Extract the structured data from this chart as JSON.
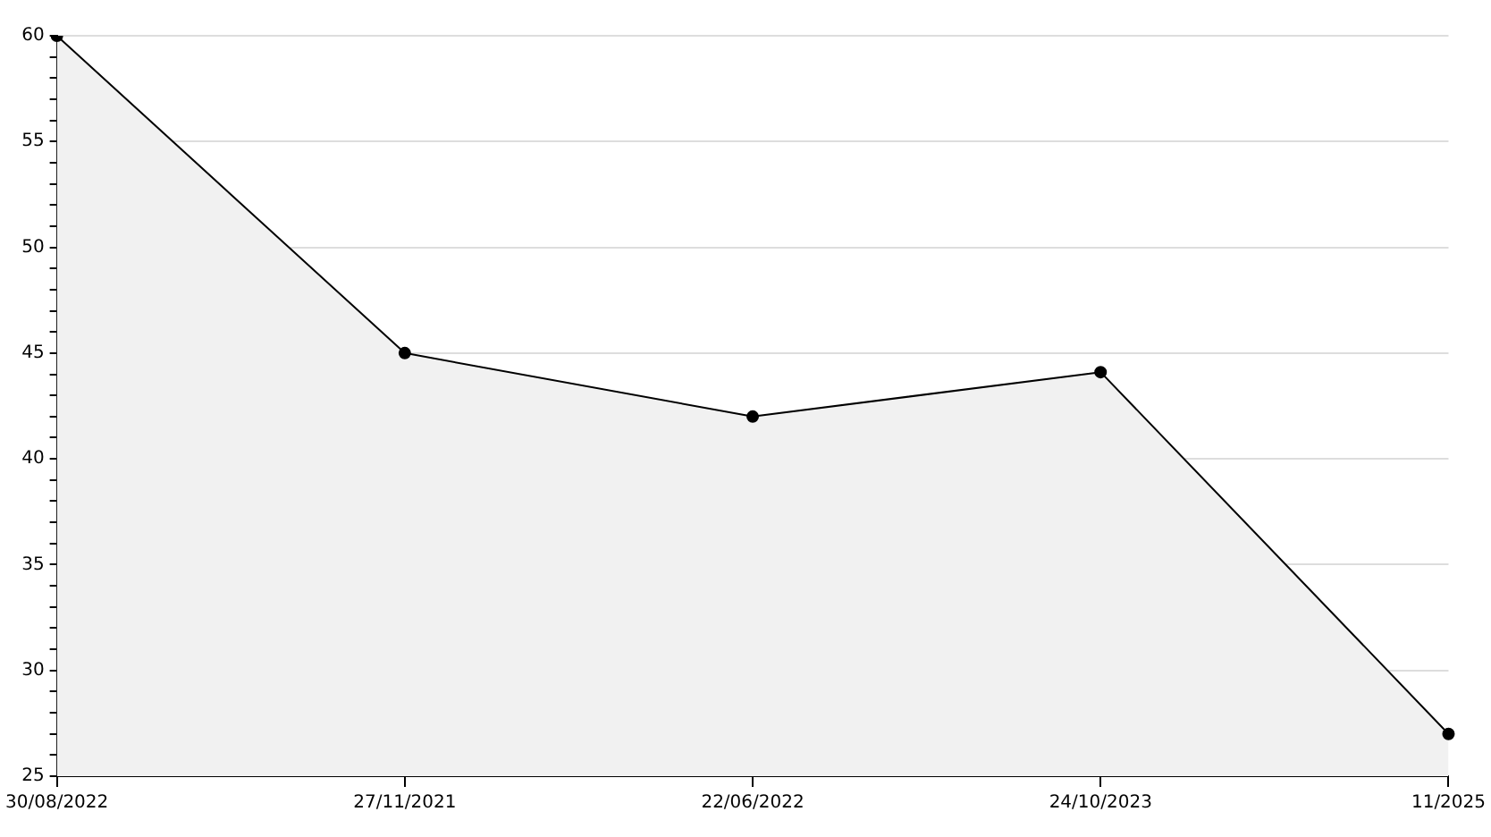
{
  "chart_data": {
    "type": "area",
    "categories": [
      "30/08/2022",
      "27/11/2021",
      "22/06/2022",
      "24/10/2023",
      "11/2025"
    ],
    "series": [
      {
        "color": "#000000",
        "values": [
          60,
          45,
          42,
          44.1,
          27
        ]
      }
    ],
    "ylim": [
      25,
      60
    ],
    "yticks": [
      25,
      {
        "value": 26,
        "label": null
      },
      {
        "value": 27,
        "label": null
      },
      {
        "value": 28,
        "label": null
      },
      {
        "value": 29,
        "label": null
      },
      30,
      {
        "value": 31,
        "label": null
      },
      {
        "value": 32,
        "label": null
      },
      {
        "value": 33,
        "label": null
      },
      {
        "value": 34,
        "label": null
      },
      35,
      {
        "value": 36,
        "label": null
      },
      {
        "value": 37,
        "label": null
      },
      {
        "value": 38,
        "label": null
      },
      {
        "value": 39,
        "label": null
      },
      40,
      {
        "value": 41,
        "label": null
      },
      {
        "value": 42,
        "label": null
      },
      {
        "value": 43,
        "label": null
      },
      {
        "value": 44,
        "label": null
      },
      45,
      {
        "value": 46,
        "label": null
      },
      {
        "value": 47,
        "label": null
      },
      {
        "value": 48,
        "label": null
      },
      {
        "value": 49,
        "label": null
      },
      50,
      {
        "value": 51,
        "label": null
      },
      {
        "value": 52,
        "label": null
      },
      {
        "value": 53,
        "label": null
      },
      {
        "value": 54,
        "label": null
      },
      55,
      {
        "value": 56,
        "label": null
      },
      {
        "value": 57,
        "label": null
      },
      {
        "value": 58,
        "label": null
      },
      {
        "value": 59,
        "label": null
      },
      60
    ],
    "grid": "y",
    "marker": "circle",
    "line_style": "solid",
    "legend": false
  }
}
